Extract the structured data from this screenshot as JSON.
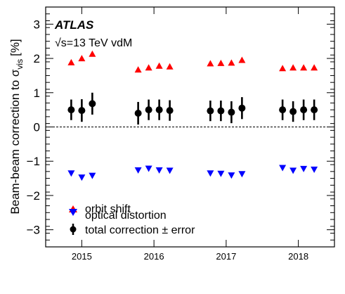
{
  "chart_data": {
    "type": "scatter",
    "experiment": "ATLAS",
    "energy_prefix": "√s",
    "energy_text": "=13 TeV vdM",
    "ylabel_main": "Beam-beam correction to σ",
    "ylabel_sub": "vis",
    "ylabel_unit": "[%]",
    "ylim": [
      -3.5,
      3.5
    ],
    "y_ticks": [
      -3,
      -2,
      -1,
      0,
      1,
      2,
      3
    ],
    "y_tick_labels": [
      "−3",
      "−2",
      "−1",
      "0",
      "1",
      "2",
      "3"
    ],
    "categories": [
      "2015",
      "2016",
      "2017",
      "2018"
    ],
    "reference_line": 0,
    "series": [
      {
        "name": "orbit shift",
        "marker": "triangle-up",
        "color": "#ff0000",
        "points": [
          {
            "year": "2015",
            "values": [
              1.88,
              2.0,
              2.13
            ]
          },
          {
            "year": "2016",
            "values": [
              1.67,
              1.73,
              1.78,
              1.76
            ]
          },
          {
            "year": "2017",
            "values": [
              1.85,
              1.86,
              1.87,
              1.95
            ]
          },
          {
            "year": "2018",
            "values": [
              1.71,
              1.73,
              1.73,
              1.73
            ]
          }
        ]
      },
      {
        "name": "optical distortion",
        "marker": "triangle-down",
        "color": "#0000ff",
        "points": [
          {
            "year": "2015",
            "values": [
              -1.35,
              -1.47,
              -1.42
            ]
          },
          {
            "year": "2016",
            "values": [
              -1.26,
              -1.21,
              -1.26,
              -1.27
            ]
          },
          {
            "year": "2017",
            "values": [
              -1.35,
              -1.36,
              -1.41,
              -1.37
            ]
          },
          {
            "year": "2018",
            "values": [
              -1.19,
              -1.27,
              -1.22,
              -1.24
            ]
          }
        ]
      },
      {
        "name": "total correction ± error",
        "marker": "circle",
        "color": "#000000",
        "points": [
          {
            "year": "2015",
            "values": [
              0.5,
              0.48,
              0.68
            ],
            "errors": [
              0.3,
              0.33,
              0.32
            ]
          },
          {
            "year": "2016",
            "values": [
              0.4,
              0.5,
              0.5,
              0.48
            ],
            "errors": [
              0.33,
              0.3,
              0.3,
              0.3
            ]
          },
          {
            "year": "2017",
            "values": [
              0.47,
              0.47,
              0.43,
              0.55
            ],
            "errors": [
              0.3,
              0.3,
              0.32,
              0.32
            ]
          },
          {
            "year": "2018",
            "values": [
              0.5,
              0.45,
              0.5,
              0.5
            ],
            "errors": [
              0.3,
              0.3,
              0.3,
              0.3
            ]
          }
        ]
      }
    ],
    "legend_position": "bottom-left"
  }
}
